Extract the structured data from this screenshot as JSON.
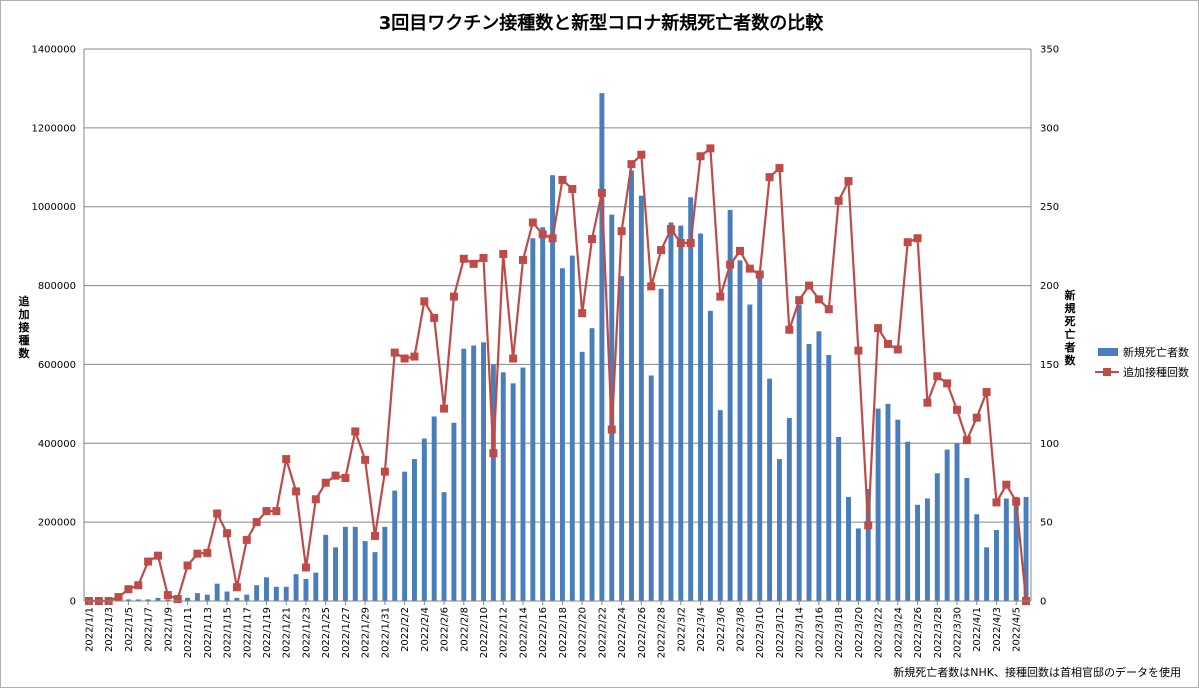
{
  "chart_data": {
    "type": "bar+line",
    "title": "3回目ワクチン接種数と新型コロナ新規死亡者数の比較",
    "ylabel_left": "追加接種数",
    "ylabel_right": "新規死亡者数",
    "note": "新規死亡者数はNHK、接種回数は首相官邸のデータを使用",
    "ylim_left": [
      0,
      1400000
    ],
    "ylim_right": [
      0,
      350
    ],
    "left_ticks": [
      "0",
      "200000",
      "400000",
      "600000",
      "800000",
      "1000000",
      "1200000",
      "1400000"
    ],
    "right_ticks": [
      "0",
      "50",
      "100",
      "150",
      "200",
      "250",
      "300",
      "350"
    ],
    "grid": true,
    "legend_position": "right",
    "x": [
      "2022/1/1",
      "2022/1/2",
      "2022/1/3",
      "2022/1/4",
      "2022/1/5",
      "2022/1/6",
      "2022/1/7",
      "2022/1/8",
      "2022/1/9",
      "2022/1/10",
      "2022/1/11",
      "2022/1/12",
      "2022/1/13",
      "2022/1/14",
      "2022/1/15",
      "2022/1/16",
      "2022/1/17",
      "2022/1/18",
      "2022/1/19",
      "2022/1/20",
      "2022/1/21",
      "2022/1/22",
      "2022/1/23",
      "2022/1/24",
      "2022/1/25",
      "2022/1/26",
      "2022/1/27",
      "2022/1/28",
      "2022/1/29",
      "2022/1/30",
      "2022/1/31",
      "2022/2/1",
      "2022/2/2",
      "2022/2/3",
      "2022/2/4",
      "2022/2/5",
      "2022/2/6",
      "2022/2/7",
      "2022/2/8",
      "2022/2/9",
      "2022/2/10",
      "2022/2/11",
      "2022/2/12",
      "2022/2/13",
      "2022/2/14",
      "2022/2/15",
      "2022/2/16",
      "2022/2/17",
      "2022/2/18",
      "2022/2/19",
      "2022/2/20",
      "2022/2/21",
      "2022/2/22",
      "2022/2/23",
      "2022/2/24",
      "2022/2/25",
      "2022/2/26",
      "2022/2/27",
      "2022/2/28",
      "2022/3/1",
      "2022/3/2",
      "2022/3/3",
      "2022/3/4",
      "2022/3/5",
      "2022/3/6",
      "2022/3/7",
      "2022/3/8",
      "2022/3/9",
      "2022/3/10",
      "2022/3/11",
      "2022/3/12",
      "2022/3/13",
      "2022/3/14",
      "2022/3/15",
      "2022/3/16",
      "2022/3/17",
      "2022/3/18",
      "2022/3/19",
      "2022/3/20",
      "2022/3/21",
      "2022/3/22",
      "2022/3/23",
      "2022/3/24",
      "2022/3/25",
      "2022/3/26",
      "2022/3/27",
      "2022/3/28",
      "2022/3/29",
      "2022/3/30",
      "2022/3/31",
      "2022/4/1",
      "2022/4/2",
      "2022/4/3",
      "2022/4/4",
      "2022/4/5",
      "2022/4/6"
    ],
    "x_tick_labels": [
      "2022/1/1",
      "2022/1/3",
      "2022/1/5",
      "2022/1/7",
      "2022/1/9",
      "2022/1/11",
      "2022/1/13",
      "2022/1/15",
      "2022/1/17",
      "2022/1/19",
      "2022/1/21",
      "2022/1/23",
      "2022/1/25",
      "2022/1/27",
      "2022/1/29",
      "2022/1/31",
      "2022/2/2",
      "2022/2/4",
      "2022/2/6",
      "2022/2/8",
      "2022/2/10",
      "2022/2/12",
      "2022/2/14",
      "2022/2/16",
      "2022/2/18",
      "2022/2/20",
      "2022/2/22",
      "2022/2/24",
      "2022/2/26",
      "2022/2/28",
      "2022/3/2",
      "2022/3/4",
      "2022/3/6",
      "2022/3/8",
      "2022/3/10",
      "2022/3/12",
      "2022/3/14",
      "2022/3/16",
      "2022/3/18",
      "2022/3/20",
      "2022/3/22",
      "2022/3/24",
      "2022/3/26",
      "2022/3/28",
      "2022/3/30",
      "2022/4/1",
      "2022/4/3",
      "2022/4/5"
    ],
    "series": [
      {
        "name": "新規死亡者数",
        "type": "bar",
        "axis": "right",
        "color": "#4a7ebb",
        "values": [
          0,
          0,
          0,
          0,
          1,
          1,
          1,
          2,
          1,
          0,
          2,
          5,
          4,
          11,
          6,
          2,
          4,
          10,
          15,
          9,
          9,
          17,
          14,
          18,
          42,
          34,
          47,
          47,
          38,
          31,
          47,
          70,
          82,
          90,
          103,
          117,
          69,
          113,
          160,
          162,
          164,
          150,
          145,
          138,
          148,
          230,
          237,
          270,
          211,
          219,
          158,
          173,
          322,
          245,
          206,
          273,
          257,
          143,
          198,
          240,
          238,
          256,
          233,
          184,
          121,
          248,
          216,
          188,
          209,
          141,
          90,
          116,
          188,
          163,
          171,
          156,
          104,
          66,
          46,
          71,
          122,
          125,
          115,
          101,
          61,
          65,
          81,
          96,
          100,
          78,
          55,
          34,
          45,
          65,
          66,
          66
        ],
        "note": "values estimated from bar heights"
      },
      {
        "name": "追加接種回数",
        "type": "line",
        "axis": "left",
        "color": "#be4b48",
        "values": [
          0,
          0,
          0,
          10000,
          30000,
          40000,
          100000,
          115000,
          15000,
          5000,
          90000,
          120000,
          122000,
          222000,
          172000,
          35000,
          155000,
          200000,
          228000,
          228000,
          360000,
          278000,
          85000,
          258000,
          300000,
          318000,
          312000,
          430000,
          358000,
          165000,
          328000,
          630000,
          615000,
          620000,
          760000,
          718000,
          488000,
          772000,
          868000,
          855000,
          870000,
          375000,
          880000,
          615000,
          865000,
          960000,
          930000,
          920000,
          1068000,
          1045000,
          730000,
          918000,
          1035000,
          435000,
          938000,
          1108000,
          1132000,
          798000,
          890000,
          943000,
          908000,
          908000,
          1128000,
          1148000,
          772000,
          853000,
          888000,
          843000,
          828000,
          1075000,
          1098000,
          688000,
          763000,
          800000,
          765000,
          740000,
          1015000,
          1065000,
          635000,
          192000,
          692000,
          652000,
          638000,
          910000,
          920000,
          503000,
          570000,
          552000,
          485000,
          408000,
          465000,
          530000,
          250000,
          295000,
          252000,
          0
        ]
      }
    ]
  }
}
